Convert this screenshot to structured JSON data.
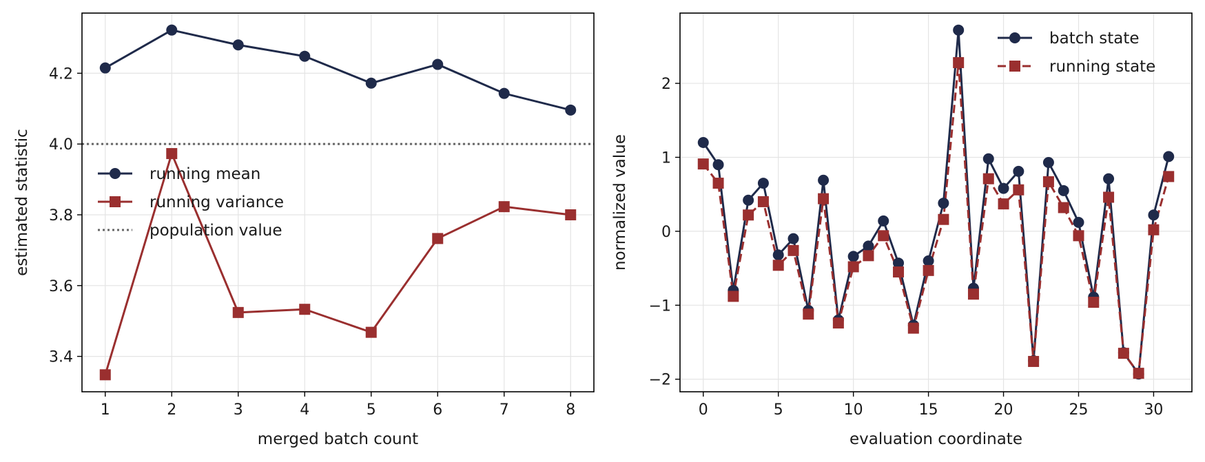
{
  "chart_data": [
    {
      "type": "line",
      "xlabel": "merged batch count",
      "ylabel": "estimated statistic",
      "xlim": [
        0.65,
        8.35
      ],
      "ylim": [
        3.3,
        4.37
      ],
      "xticks": [
        1,
        2,
        3,
        4,
        5,
        6,
        7,
        8
      ],
      "yticks": [
        3.4,
        3.6,
        3.8,
        4.0,
        4.2
      ],
      "ytick_labels": [
        "3.4",
        "3.6",
        "3.8",
        "4.0",
        "4.2"
      ],
      "grid": true,
      "legend_position": "center-left",
      "x": [
        1,
        2,
        3,
        4,
        5,
        6,
        7,
        8
      ],
      "series": [
        {
          "name": "running mean",
          "marker": "circle",
          "style": "solid",
          "color": "#1f2a4a",
          "values": [
            4.215,
            4.322,
            4.28,
            4.248,
            4.172,
            4.225,
            4.143,
            4.096
          ]
        },
        {
          "name": "running variance",
          "marker": "square",
          "style": "solid",
          "color": "#9a2f2f",
          "values": [
            3.348,
            3.973,
            3.524,
            3.533,
            3.468,
            3.733,
            3.823,
            3.8
          ]
        }
      ],
      "reference_line": {
        "name": "population value",
        "y": 4.0,
        "style": "dotted",
        "color": "#666666"
      }
    },
    {
      "type": "line",
      "xlabel": "evaluation coordinate",
      "ylabel": "normalized value",
      "xlim": [
        -1.55,
        32.55
      ],
      "ylim": [
        -2.17,
        2.95
      ],
      "xticks": [
        0,
        5,
        10,
        15,
        20,
        25,
        30
      ],
      "yticks": [
        -2,
        -1,
        0,
        1,
        2
      ],
      "ytick_labels": [
        "−2",
        "−1",
        "0",
        "1",
        "2"
      ],
      "grid": true,
      "legend_position": "top-right",
      "x": [
        0,
        1,
        2,
        3,
        4,
        5,
        6,
        7,
        8,
        9,
        10,
        11,
        12,
        13,
        14,
        15,
        16,
        17,
        18,
        19,
        20,
        21,
        22,
        23,
        24,
        25,
        26,
        27,
        28,
        29,
        30,
        31
      ],
      "series": [
        {
          "name": "batch state",
          "marker": "circle",
          "style": "solid",
          "color": "#1f2a4a",
          "values": [
            1.2,
            0.9,
            -0.8,
            0.42,
            0.65,
            -0.32,
            -0.1,
            -1.07,
            0.69,
            -1.2,
            -0.34,
            -0.2,
            0.14,
            -0.43,
            -1.27,
            -0.4,
            0.38,
            2.72,
            -0.77,
            0.98,
            0.58,
            0.81,
            -1.75,
            0.93,
            0.55,
            0.12,
            -0.89,
            0.71,
            -1.64,
            -1.93,
            0.22,
            1.01
          ]
        },
        {
          "name": "running state",
          "marker": "square",
          "style": "dashed",
          "color": "#9a2f2f",
          "values": [
            0.91,
            0.65,
            -0.88,
            0.22,
            0.4,
            -0.46,
            -0.26,
            -1.12,
            0.44,
            -1.24,
            -0.48,
            -0.33,
            -0.06,
            -0.55,
            -1.31,
            -0.53,
            0.16,
            2.28,
            -0.85,
            0.71,
            0.37,
            0.56,
            -1.76,
            0.67,
            0.32,
            -0.06,
            -0.96,
            0.46,
            -1.65,
            -1.92,
            0.02,
            0.74
          ]
        }
      ]
    }
  ]
}
